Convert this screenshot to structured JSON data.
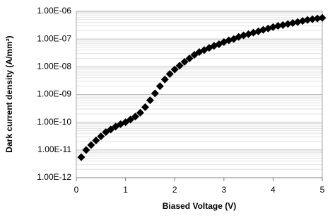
{
  "chart_data": {
    "type": "scatter",
    "x_label": "Biased Voltage (V)",
    "y_label": "Dark current density (A/mm²)",
    "y_scale": "log",
    "grid": true,
    "minor_grid": true,
    "marker": "diamond",
    "color": "#000000",
    "xlim": [
      0,
      5
    ],
    "xticks": [
      0,
      1,
      2,
      3,
      4,
      5
    ],
    "ylim": [
      1e-12,
      1e-06
    ],
    "yticks": [
      {
        "value": 1e-12,
        "label": "1.00E-12"
      },
      {
        "value": 1e-11,
        "label": "1.00E-11"
      },
      {
        "value": 1e-10,
        "label": "1.00E-10"
      },
      {
        "value": 1e-09,
        "label": "1.00E-09"
      },
      {
        "value": 1e-08,
        "label": "1.00E-08"
      },
      {
        "value": 1e-07,
        "label": "1.00E-07"
      },
      {
        "value": 1e-06,
        "label": "1.00E-06"
      }
    ],
    "x": [
      0.1,
      0.2,
      0.3,
      0.4,
      0.5,
      0.6,
      0.7,
      0.8,
      0.9,
      1.0,
      1.1,
      1.2,
      1.3,
      1.4,
      1.5,
      1.6,
      1.7,
      1.8,
      1.9,
      2.0,
      2.1,
      2.2,
      2.3,
      2.4,
      2.5,
      2.6,
      2.7,
      2.8,
      2.9,
      3.0,
      3.1,
      3.2,
      3.3,
      3.4,
      3.5,
      3.6,
      3.7,
      3.8,
      3.9,
      4.0,
      4.1,
      4.2,
      4.3,
      4.4,
      4.5,
      4.6,
      4.7,
      4.8,
      4.9,
      5.0
    ],
    "values": [
      5.5e-12,
      1e-11,
      1.5e-11,
      2.2e-11,
      3.1e-11,
      4.4e-11,
      5.5e-11,
      7e-11,
      8.5e-11,
      1e-10,
      1.25e-10,
      1.6e-10,
      2.2e-10,
      3.5e-10,
      6.2e-10,
      1.1e-09,
      2e-09,
      3.5e-09,
      5.5e-09,
      8e-09,
      1.1e-08,
      1.5e-08,
      2e-08,
      2.7e-08,
      3.4e-08,
      4e-08,
      4.8e-08,
      5.7e-08,
      6.5e-08,
      7.8e-08,
      9e-08,
      1e-07,
      1.2e-07,
      1.35e-07,
      1.5e-07,
      1.7e-07,
      1.9e-07,
      2.15e-07,
      2.4e-07,
      2.7e-07,
      3e-07,
      3.2e-07,
      3.5e-07,
      3.8e-07,
      4.1e-07,
      4.5e-07,
      4.9e-07,
      5.2e-07,
      5.5e-07,
      5.8e-07
    ]
  }
}
